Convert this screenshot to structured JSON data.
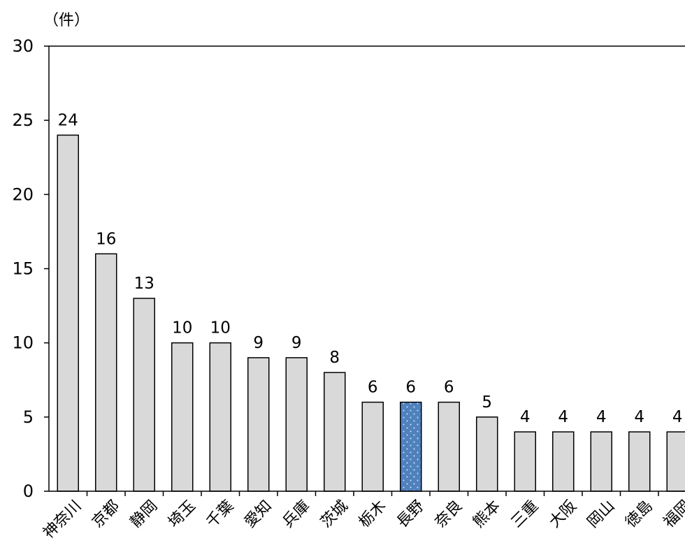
{
  "chart_data": {
    "type": "bar",
    "unit_label": "（件）",
    "title": "",
    "xlabel": "",
    "ylabel": "",
    "ylim": [
      0,
      30
    ],
    "yticks": [
      0,
      5,
      10,
      15,
      20,
      25,
      30
    ],
    "grid": false,
    "legend": "none",
    "highlight_category": "長野",
    "colors": {
      "bar": "#d9d9d9",
      "highlight": "#4f81bd",
      "highlight_dots": "#dbe6f4",
      "outline": "#000000"
    },
    "categories": [
      "神奈川",
      "京都",
      "静岡",
      "埼玉",
      "千葉",
      "愛知",
      "兵庫",
      "茨城",
      "栃木",
      "長野",
      "奈良",
      "熊本",
      "三重",
      "大阪",
      "岡山",
      "徳島",
      "福岡"
    ],
    "values": [
      24,
      16,
      13,
      10,
      10,
      9,
      9,
      8,
      6,
      6,
      6,
      5,
      4,
      4,
      4,
      4,
      4
    ]
  }
}
